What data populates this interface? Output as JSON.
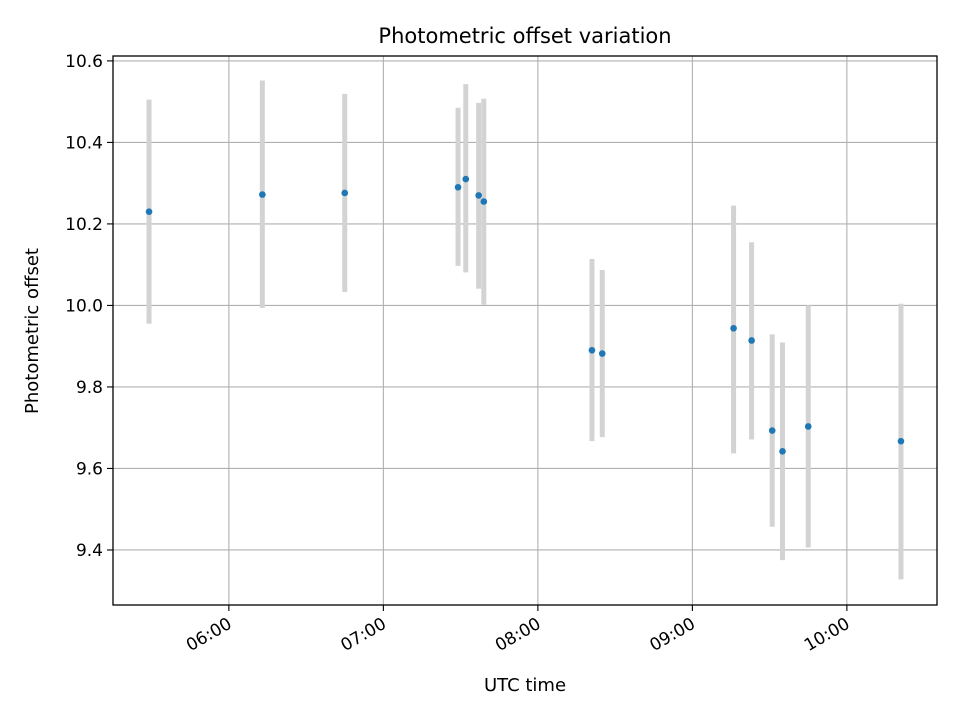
{
  "chart_data": {
    "type": "scatter",
    "title": "Photometric offset variation",
    "xlabel": "UTC time",
    "ylabel": "Photometric offset",
    "x_ticks": [
      "06:00",
      "07:00",
      "08:00",
      "09:00",
      "10:00"
    ],
    "y_ticks": [
      "9.4",
      "9.6",
      "9.8",
      "10.0",
      "10.2",
      "10.4",
      "10.6"
    ],
    "xlim": [
      "05:15",
      "10:35"
    ],
    "ylim": [
      9.265,
      10.612
    ],
    "grid": true,
    "error_bars": true,
    "colors": {
      "points": "#1f77b4",
      "errorbars": "#d3d3d3",
      "grid": "#b0b0b0"
    },
    "series": [
      {
        "points": [
          {
            "x": "05:29",
            "y": 10.23,
            "ymin": 9.955,
            "ymax": 10.505
          },
          {
            "x": "06:13",
            "y": 10.272,
            "ymin": 9.994,
            "ymax": 10.552
          },
          {
            "x": "06:45",
            "y": 10.276,
            "ymin": 10.033,
            "ymax": 10.519
          },
          {
            "x": "07:29",
            "y": 10.29,
            "ymin": 10.097,
            "ymax": 10.485
          },
          {
            "x": "07:32",
            "y": 10.31,
            "ymin": 10.081,
            "ymax": 10.543
          },
          {
            "x": "07:37",
            "y": 10.27,
            "ymin": 10.041,
            "ymax": 10.497
          },
          {
            "x": "07:39",
            "y": 10.255,
            "ymin": 10.002,
            "ymax": 10.507
          },
          {
            "x": "08:21",
            "y": 9.89,
            "ymin": 9.667,
            "ymax": 10.114
          },
          {
            "x": "08:25",
            "y": 9.882,
            "ymin": 9.677,
            "ymax": 10.087
          },
          {
            "x": "09:16",
            "y": 9.944,
            "ymin": 9.637,
            "ymax": 10.245
          },
          {
            "x": "09:23",
            "y": 9.914,
            "ymin": 9.671,
            "ymax": 10.155
          },
          {
            "x": "09:31",
            "y": 9.693,
            "ymin": 9.457,
            "ymax": 9.929
          },
          {
            "x": "09:35",
            "y": 9.642,
            "ymin": 9.375,
            "ymax": 9.909
          },
          {
            "x": "09:45",
            "y": 9.703,
            "ymin": 9.406,
            "ymax": 10.0
          },
          {
            "x": "10:21",
            "y": 9.667,
            "ymin": 9.328,
            "ymax": 10.004
          }
        ]
      }
    ]
  }
}
